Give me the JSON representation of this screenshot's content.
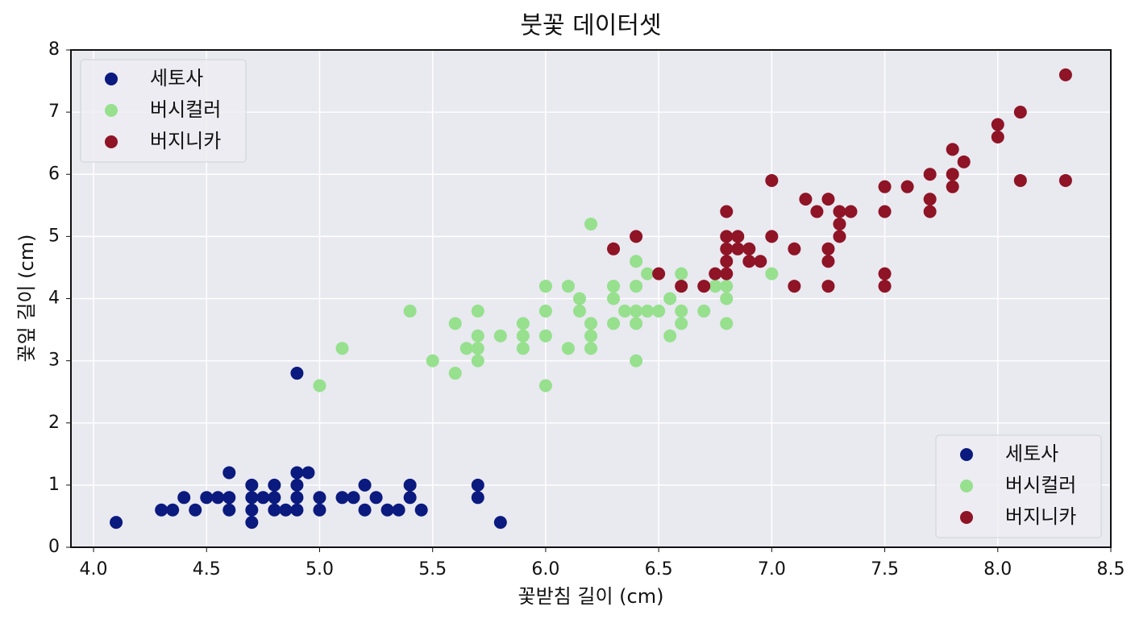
{
  "chart_data": {
    "type": "scatter",
    "title": "붓꽃 데이터셋",
    "x_label": "꽃받침 길이 (cm)",
    "y_label": "꽃잎 길이 (cm)",
    "xlim": [
      3.9,
      8.5
    ],
    "ylim": [
      0,
      8
    ],
    "xticks": [
      {
        "value": 4,
        "label": "4.0"
      },
      4.5,
      {
        "value": 5,
        "label": "5.0"
      },
      5.5,
      {
        "value": 6,
        "label": "6.0"
      },
      6.5,
      {
        "value": 7,
        "label": "7.0"
      },
      7.5,
      {
        "value": 8,
        "label": "8.0"
      },
      8.5
    ],
    "yticks": [
      0,
      1,
      2,
      3,
      4,
      5,
      6,
      7,
      8
    ],
    "grid": true,
    "legend": [
      "upper left",
      "lower right"
    ],
    "series": [
      {
        "name": "세토사",
        "color": "#0b1a7e",
        "x": [
          4.1,
          4.3,
          4.35,
          4.4,
          4.45,
          4.5,
          4.55,
          4.6,
          4.6,
          4.6,
          4.7,
          4.7,
          4.7,
          4.7,
          4.75,
          4.8,
          4.8,
          4.8,
          4.85,
          4.9,
          4.9,
          4.9,
          4.9,
          4.9,
          4.95,
          5.0,
          5.0,
          5.1,
          5.15,
          5.2,
          5.2,
          5.25,
          5.3,
          5.35,
          5.4,
          5.4,
          5.45,
          5.7,
          5.7,
          5.8
        ],
        "values": [
          0.4,
          0.6,
          0.6,
          0.8,
          0.6,
          0.8,
          0.8,
          1.2,
          0.8,
          0.6,
          1.0,
          0.8,
          0.6,
          0.4,
          0.8,
          1.0,
          0.8,
          0.6,
          0.6,
          2.8,
          1.2,
          1.0,
          0.8,
          0.6,
          1.2,
          0.8,
          0.6,
          0.8,
          0.8,
          1.0,
          0.6,
          0.8,
          0.6,
          0.6,
          1.0,
          0.8,
          0.6,
          1.0,
          0.8,
          0.4
        ]
      },
      {
        "name": "버시컬러",
        "color": "#96e08e",
        "x": [
          5.0,
          5.1,
          5.4,
          5.5,
          5.6,
          5.6,
          5.65,
          5.7,
          5.7,
          5.7,
          5.7,
          5.8,
          5.9,
          5.9,
          5.9,
          6.0,
          6.0,
          6.0,
          6.0,
          6.1,
          6.1,
          6.15,
          6.15,
          6.2,
          6.2,
          6.2,
          6.2,
          6.3,
          6.3,
          6.3,
          6.35,
          6.4,
          6.4,
          6.4,
          6.4,
          6.4,
          6.45,
          6.45,
          6.5,
          6.55,
          6.55,
          6.6,
          6.6,
          6.6,
          6.7,
          6.75,
          6.8,
          6.8,
          6.8,
          7.0
        ],
        "values": [
          2.6,
          3.2,
          3.8,
          3.0,
          3.6,
          2.8,
          3.2,
          3.8,
          3.4,
          3.2,
          3.0,
          3.4,
          3.6,
          3.4,
          3.2,
          4.2,
          3.8,
          3.4,
          2.6,
          4.2,
          3.2,
          4.0,
          3.8,
          5.2,
          3.6,
          3.4,
          3.2,
          4.2,
          4.0,
          3.6,
          3.8,
          4.6,
          4.2,
          3.8,
          3.6,
          3.0,
          4.4,
          3.8,
          3.8,
          4.0,
          3.4,
          4.4,
          3.8,
          3.6,
          3.8,
          4.2,
          4.2,
          4.0,
          3.6,
          4.4
        ]
      },
      {
        "name": "버지니카",
        "color": "#8e1426",
        "x": [
          6.3,
          6.4,
          6.5,
          6.6,
          6.7,
          6.75,
          6.8,
          6.8,
          6.8,
          6.8,
          6.8,
          6.85,
          6.85,
          6.9,
          6.9,
          6.95,
          7.0,
          7.0,
          7.1,
          7.1,
          7.15,
          7.2,
          7.25,
          7.25,
          7.25,
          7.25,
          7.3,
          7.3,
          7.3,
          7.35,
          7.5,
          7.5,
          7.5,
          7.5,
          7.6,
          7.7,
          7.7,
          7.7,
          7.8,
          7.8,
          7.8,
          7.85,
          8.0,
          8.0,
          8.1,
          8.1,
          8.3,
          8.3
        ],
        "values": [
          4.8,
          5.0,
          4.4,
          4.2,
          4.2,
          4.4,
          5.4,
          5.0,
          4.8,
          4.6,
          4.4,
          5.0,
          4.8,
          4.8,
          4.6,
          4.6,
          5.9,
          5.0,
          4.8,
          4.2,
          5.6,
          5.4,
          5.6,
          4.8,
          4.6,
          4.2,
          5.4,
          5.2,
          5.0,
          5.4,
          5.8,
          5.4,
          4.4,
          4.2,
          5.8,
          6.0,
          5.6,
          5.4,
          6.4,
          6.0,
          5.8,
          6.2,
          6.8,
          6.6,
          7.0,
          5.9,
          7.6,
          5.9
        ]
      }
    ]
  }
}
